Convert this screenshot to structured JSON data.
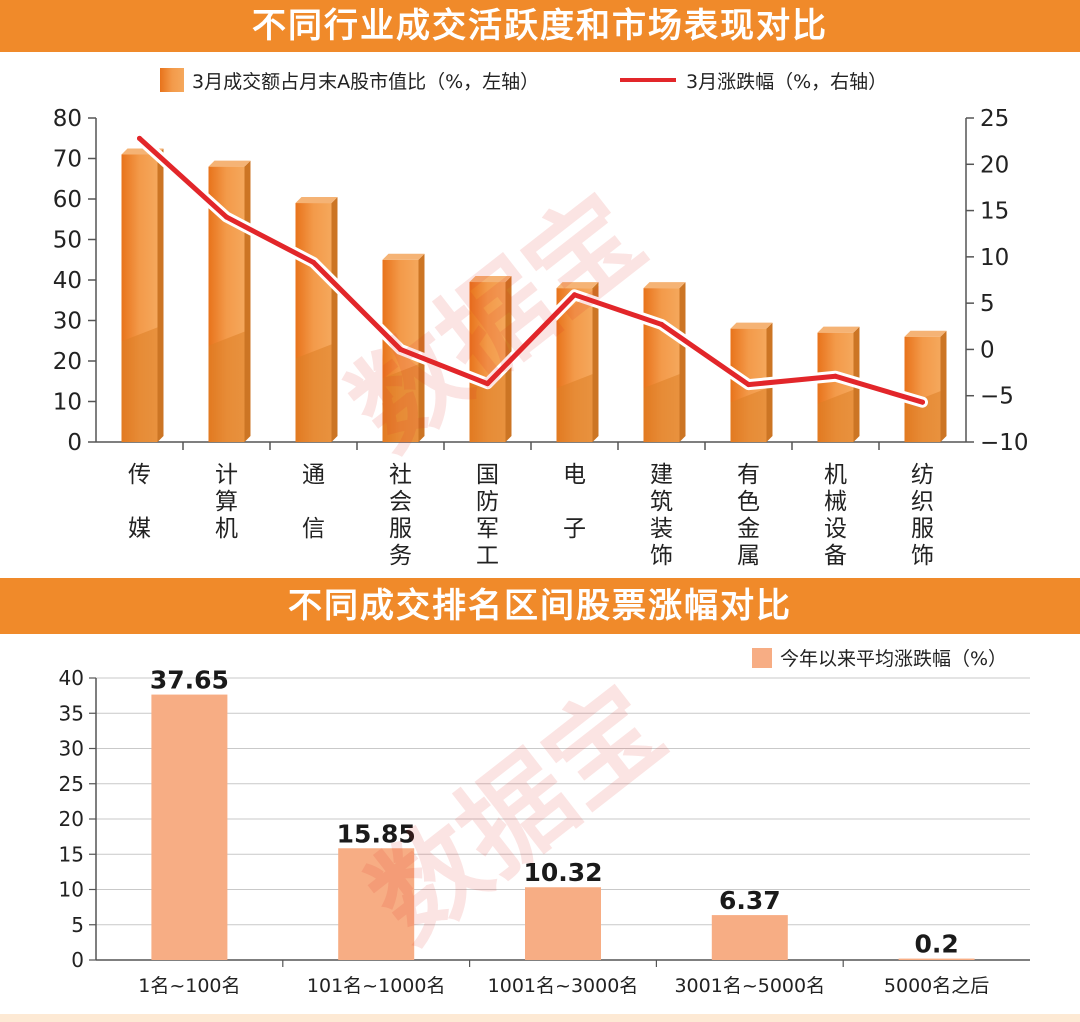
{
  "charts": {
    "top_title": "不同行业成交活跃度和市场表现对比",
    "bottom_title": "不同成交排名区间股票涨幅对比",
    "watermark": "数据宝"
  },
  "chart_data": [
    {
      "type": "bar",
      "title": "不同行业成交活跃度和市场表现对比",
      "categories": [
        "传媒",
        "计算机",
        "通信",
        "社会服务",
        "国防军工",
        "电子",
        "建筑装饰",
        "有色金属",
        "机械设备",
        "纺织服饰"
      ],
      "category_labels": [
        [
          "传",
          "",
          "媒"
        ],
        [
          "计",
          "算",
          "机"
        ],
        [
          "通",
          "",
          "信"
        ],
        [
          "社",
          "会",
          "服",
          "务"
        ],
        [
          "国",
          "防",
          "军",
          "工"
        ],
        [
          "电",
          "",
          "子"
        ],
        [
          "建",
          "筑",
          "装",
          "饰"
        ],
        [
          "有",
          "色",
          "金",
          "属"
        ],
        [
          "机",
          "械",
          "设",
          "备"
        ],
        [
          "纺",
          "织",
          "服",
          "饰"
        ]
      ],
      "series": [
        {
          "name": "3月成交额占月末A股市值比（%，左轴）",
          "type": "bar",
          "axis": "left",
          "color": "#f08a2a",
          "values": [
            71,
            68,
            59,
            45,
            39.5,
            38,
            38,
            28,
            27,
            26
          ]
        },
        {
          "name": "3月涨跌幅（%，右轴）",
          "type": "line",
          "axis": "right",
          "color": "#e2262a",
          "values": [
            22.8,
            14.3,
            9.4,
            0,
            -3.7,
            5.9,
            2.7,
            -3.8,
            -2.9,
            -5.7
          ]
        }
      ],
      "ylim_left": [
        0,
        80
      ],
      "yticks_left": [
        0,
        10,
        20,
        30,
        40,
        50,
        60,
        70,
        80
      ],
      "ylim_right": [
        -10,
        25
      ],
      "yticks_right": [
        -10,
        -5,
        0,
        5,
        10,
        15,
        20,
        25
      ],
      "yticks_right_labels": [
        "−10",
        "−5",
        "0",
        "5",
        "10",
        "15",
        "20",
        "25"
      ],
      "legend_position": "top-center",
      "grid": false
    },
    {
      "type": "bar",
      "title": "不同成交排名区间股票涨幅对比",
      "categories": [
        "1名~100名",
        "101名~1000名",
        "1001名~3000名",
        "3001名~5000名",
        "5000名之后"
      ],
      "series": [
        {
          "name": "今年以来平均涨跌幅（%）",
          "color": "#f7ad84",
          "values": [
            37.65,
            15.85,
            10.32,
            6.37,
            0.2
          ],
          "data_labels": [
            "37.65",
            "15.85",
            "10.32",
            "6.37",
            "0.2"
          ]
        }
      ],
      "ylim": [
        0,
        40
      ],
      "yticks": [
        0,
        5,
        10,
        15,
        20,
        25,
        30,
        35,
        40
      ],
      "legend_position": "top-right",
      "grid": true
    }
  ]
}
